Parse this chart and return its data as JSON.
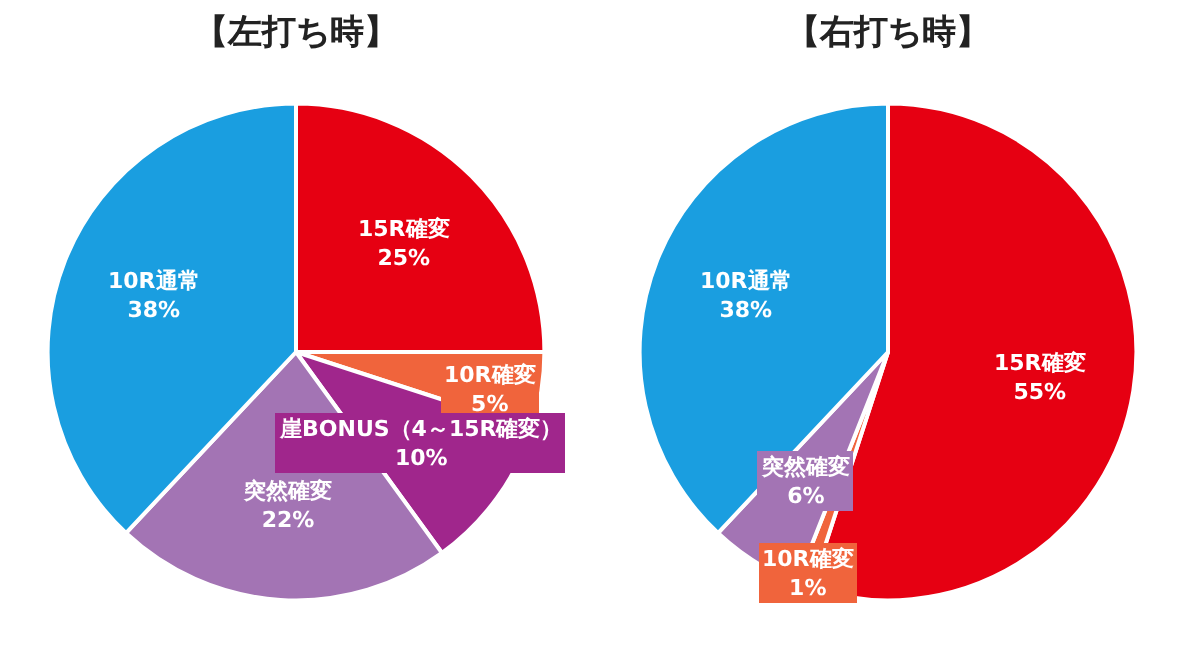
{
  "chart_data": [
    {
      "type": "pie",
      "title": "【左打ち時】",
      "categories": [
        "15R確変",
        "10R確変",
        "崖BONUS（4～15R確変）",
        "突然確変",
        "10R通常"
      ],
      "values": [
        25,
        5,
        10,
        22,
        38
      ],
      "value_labels": [
        "25%",
        "5%",
        "10%",
        "22%",
        "38%"
      ],
      "colors": [
        "#e60012",
        "#f0643c",
        "#a0268c",
        "#a374b4",
        "#1a9ee0"
      ]
    },
    {
      "type": "pie",
      "title": "【右打ち時】",
      "categories": [
        "15R確変",
        "10R確変",
        "突然確変",
        "10R通常"
      ],
      "values": [
        55,
        1,
        6,
        38
      ],
      "value_labels": [
        "55%",
        "1%",
        "6%",
        "38%"
      ],
      "colors": [
        "#e60012",
        "#f0643c",
        "#a374b4",
        "#1a9ee0"
      ]
    }
  ]
}
